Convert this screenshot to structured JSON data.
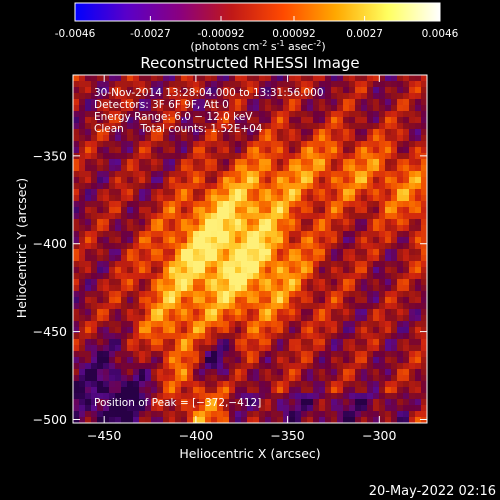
{
  "chart_data": {
    "type": "heatmap",
    "title": "Reconstructed RHESSI Image",
    "colorbar": {
      "ticks": [
        "-0.0046",
        "-0.0027",
        "-0.00092",
        "0.00092",
        "0.0027",
        "0.0046"
      ],
      "range": [
        -0.0046,
        0.0046
      ],
      "units_main": "(photons cm",
      "units_exp1": "-2",
      "units_mid": " s",
      "units_exp2": "-1",
      "units_tail": " asec",
      "units_exp3": "-2",
      "units_close": ")",
      "colors": [
        "#0000ff",
        "#5a00c8",
        "#8a0080",
        "#c01818",
        "#ff4a00",
        "#ffa800",
        "#ffff60",
        "#ffffff"
      ]
    },
    "xlabel": "Heliocentric X (arcsec)",
    "ylabel": "Heliocentric Y (arcsec)",
    "xlim": [
      -467,
      -274
    ],
    "ylim": [
      -502,
      -304
    ],
    "xticks": [
      {
        "value": -450,
        "label": "−450"
      },
      {
        "value": -400,
        "label": "−400"
      },
      {
        "value": -350,
        "label": "−350"
      },
      {
        "value": -300,
        "label": "−300"
      }
    ],
    "yticks": [
      {
        "value": -350,
        "label": "−350"
      },
      {
        "value": -400,
        "label": "−400"
      },
      {
        "value": -450,
        "label": "−450"
      },
      {
        "value": -500,
        "label": "−500"
      }
    ],
    "annotations": [
      "30-Nov-2014 13:28:04.000 to 13:31:56.000",
      "Detectors: 3F 6F 9F, Att 0",
      "Energy Range: 6.0 − 12.0 keV",
      "Clean     Total counts: 1.52E+04"
    ],
    "peak_label": "Position of Peak = [−372,−412]",
    "peak": {
      "x": -372,
      "y": -412
    }
  },
  "footer_timestamp": "20-May-2022 02:16"
}
